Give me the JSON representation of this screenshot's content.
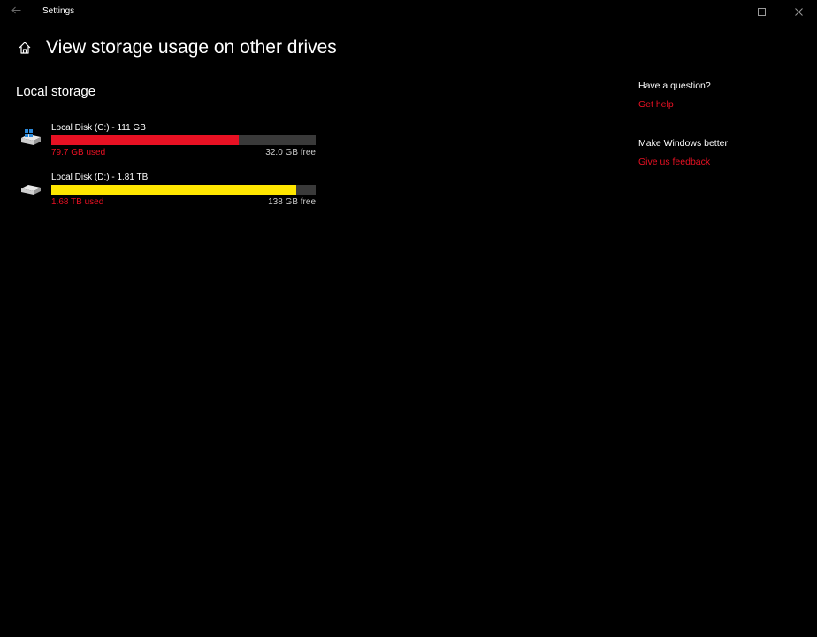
{
  "titlebar": {
    "title": "Settings",
    "back_icon": "arrow-left-icon",
    "controls": [
      "minimize-icon",
      "maximize-icon",
      "close-icon"
    ]
  },
  "header": {
    "icon": "home-icon",
    "title": "View storage usage on other drives"
  },
  "section": {
    "title": "Local storage"
  },
  "drives": [
    {
      "name": "Local Disk (C:) - 111 GB",
      "used": "79.7 GB used",
      "free": "32.0 GB free",
      "used_fraction": 0.71,
      "bar_color": "#e81123",
      "used_text_color": "#e81123",
      "icon": "windows-system-drive-icon"
    },
    {
      "name": "Local Disk (D:) - 1.81 TB",
      "used": "1.68 TB used",
      "free": "138 GB free",
      "used_fraction": 0.925,
      "bar_color": "#ffe600",
      "used_text_color": "#e81123",
      "icon": "hard-drive-icon"
    }
  ],
  "help": {
    "question_heading": "Have a question?",
    "get_help": "Get help",
    "feedback_heading": "Make Windows better",
    "feedback_link": "Give us feedback"
  },
  "colors": {
    "background": "#000000",
    "accent": "#e81123",
    "track": "#3a3a3a"
  }
}
